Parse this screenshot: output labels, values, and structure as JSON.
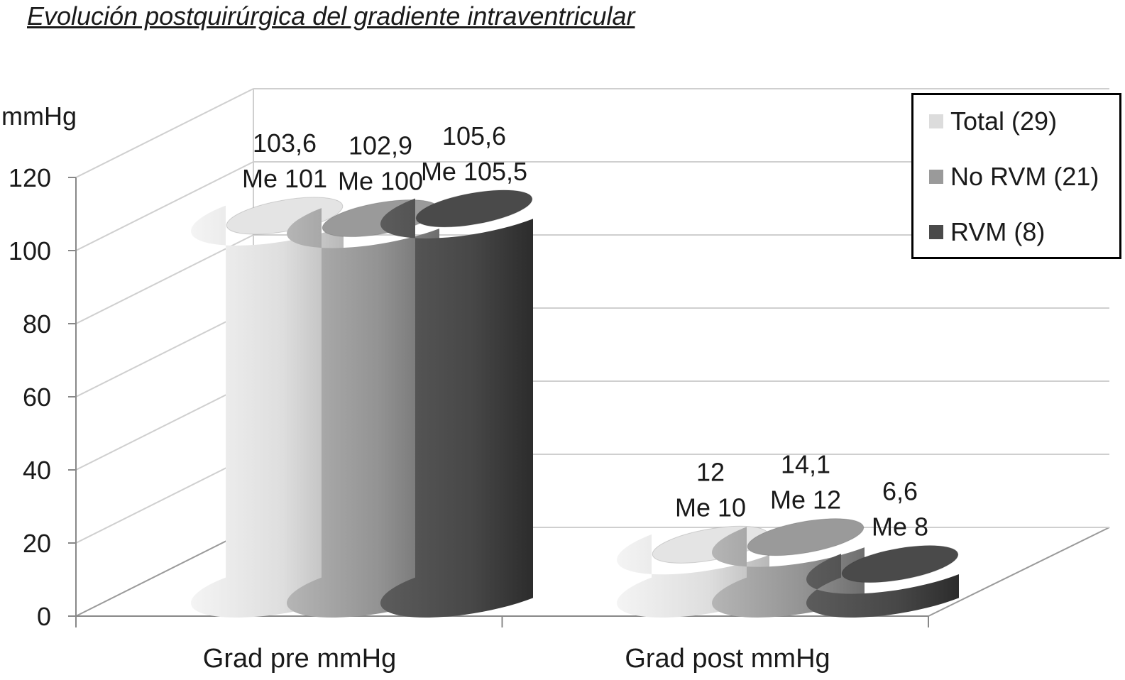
{
  "chart_data": {
    "type": "bar",
    "title": "Evolución postquirúrgica del gradiente intraventricular",
    "ylabel": "mmHg",
    "xlabel": "",
    "ylim": [
      0,
      120
    ],
    "yticks": [
      "0",
      "20",
      "40",
      "60",
      "80",
      "100",
      "120"
    ],
    "categories": [
      "Grad pre mmHg",
      "Grad post mmHg"
    ],
    "series": [
      {
        "name": "Total (29)",
        "values": [
          103.6,
          12
        ],
        "labels": [
          [
            "103,6",
            "Me 101"
          ],
          [
            "12",
            "Me 10"
          ]
        ],
        "medians": [
          101,
          10
        ],
        "color": "#e4e4e4"
      },
      {
        "name": "No RVM (21)",
        "values": [
          102.9,
          14.1
        ],
        "labels": [
          [
            "102,9",
            "Me 100"
          ],
          [
            "14,1",
            "Me 12"
          ]
        ],
        "medians": [
          100,
          12
        ],
        "color": "#9a9a9a"
      },
      {
        "name": "RVM (8)",
        "values": [
          105.6,
          6.6
        ],
        "labels": [
          [
            "105,6",
            "Me 105,5"
          ],
          [
            "6,6",
            "Me 8"
          ]
        ],
        "medians": [
          105.5,
          8
        ],
        "color": "#4a4a4a"
      }
    ],
    "legend_position": "top-right",
    "grid": true,
    "style": "3d-cylinder"
  }
}
